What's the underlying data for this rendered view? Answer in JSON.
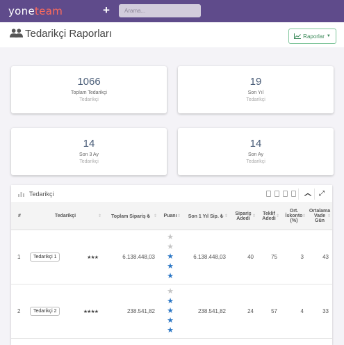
{
  "app": {
    "logo_a": "yone",
    "logo_b": "team",
    "search_placeholder": "Arama...",
    "plus": "+"
  },
  "header": {
    "title": "Tedarikçi Raporları",
    "reports_button": "Raporlar"
  },
  "stats": [
    {
      "value": "1066",
      "label": "Toplam Tedarikçi",
      "sub": "Tedarikçi"
    },
    {
      "value": "19",
      "label": "Son Yıl",
      "sub": "Tedarikçi"
    },
    {
      "value": "14",
      "label": "Son 3 Ay",
      "sub": "Tedarikçi"
    },
    {
      "value": "14",
      "label": "Son Ay",
      "sub": "Tedarikçi"
    }
  ],
  "table": {
    "title": "Tedarikçi",
    "columns": [
      "#",
      "Tedarikçi",
      "Toplam Sipariş ₺",
      "Puanı",
      "Son 1 Yıl Sip. ₺",
      "Sipariş Adedi",
      "Teklif Adedi",
      "Ort. İskonto (%)",
      "Ortalama Vade Gün"
    ],
    "rows": [
      {
        "idx": "1",
        "name": "Tedarikçi 1",
        "mini_rating": 3,
        "mini_stars": "★★★",
        "total": "6.138.448,03",
        "rating": 3,
        "last_year": "6.138.448,03",
        "orders": "40",
        "offers": "75",
        "discount": "3",
        "term": "43"
      },
      {
        "idx": "2",
        "name": "Tedarikçi 2",
        "mini_rating": 4,
        "mini_stars": "★★★★",
        "total": "238.541,82",
        "rating": 4,
        "last_year": "238.541,82",
        "orders": "24",
        "offers": "57",
        "discount": "4",
        "term": "33"
      }
    ]
  },
  "colors": {
    "topbar": "#5f4b8b",
    "accent_logo": "#ff6b5b",
    "star_on": "#2c77c5",
    "star_off": "#c5c5c5",
    "reports_button": "#3c8a5a"
  }
}
